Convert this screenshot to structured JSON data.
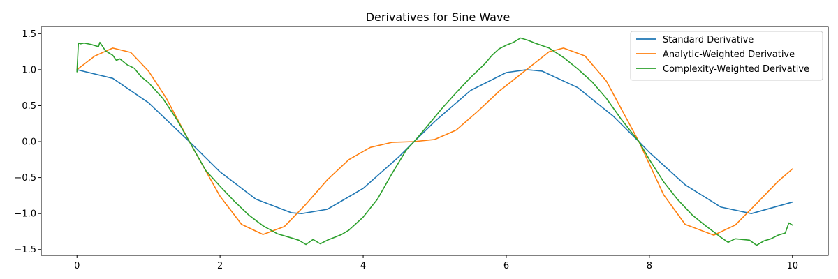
{
  "chart_data": {
    "type": "line",
    "title": "Derivatives for Sine Wave",
    "xlabel": "",
    "ylabel": "",
    "xlim": [
      -0.5,
      10.5
    ],
    "ylim": [
      -1.58,
      1.6
    ],
    "x_ticks": [
      0,
      2,
      4,
      6,
      8,
      10
    ],
    "x_tick_labels": [
      "0",
      "2",
      "4",
      "6",
      "8",
      "10"
    ],
    "y_ticks": [
      -1.5,
      -1.0,
      -0.5,
      0.0,
      0.5,
      1.0,
      1.5
    ],
    "y_tick_labels": [
      "−1.5",
      "−1.0",
      "−0.5",
      "0.0",
      "0.5",
      "1.0",
      "1.5"
    ],
    "grid": false,
    "legend_position": "top-right",
    "series": [
      {
        "name": "Standard Derivative",
        "color": "#1f77b4",
        "x": [
          0,
          0.5,
          1.0,
          1.571,
          2.0,
          2.5,
          3.0,
          3.142,
          3.5,
          4.0,
          4.5,
          4.712,
          5.0,
          5.5,
          6.0,
          6.283,
          6.5,
          7.0,
          7.5,
          7.854,
          8.0,
          8.5,
          9.0,
          9.425,
          10.0
        ],
        "values": [
          1.0,
          0.88,
          0.54,
          0.0,
          -0.42,
          -0.8,
          -0.99,
          -1.0,
          -0.94,
          -0.65,
          -0.21,
          0.0,
          0.28,
          0.71,
          0.96,
          1.0,
          0.98,
          0.75,
          0.35,
          0.0,
          -0.15,
          -0.6,
          -0.91,
          -1.0,
          -0.84
        ]
      },
      {
        "name": "Analytic-Weighted Derivative",
        "color": "#ff7f0e",
        "x": [
          0,
          0.25,
          0.5,
          0.75,
          1.0,
          1.25,
          1.571,
          2.0,
          2.3,
          2.6,
          2.9,
          3.2,
          3.5,
          3.8,
          4.1,
          4.4,
          4.712,
          5.0,
          5.3,
          5.6,
          5.9,
          6.283,
          6.6,
          6.8,
          7.1,
          7.4,
          7.854,
          8.2,
          8.5,
          8.9,
          9.2,
          9.5,
          9.8,
          10.0
        ],
        "values": [
          1.0,
          1.19,
          1.3,
          1.24,
          0.98,
          0.6,
          0.0,
          -0.76,
          -1.15,
          -1.29,
          -1.18,
          -0.87,
          -0.53,
          -0.25,
          -0.08,
          -0.01,
          0.0,
          0.03,
          0.16,
          0.42,
          0.7,
          1.0,
          1.25,
          1.3,
          1.19,
          0.84,
          0.0,
          -0.74,
          -1.15,
          -1.3,
          -1.16,
          -0.86,
          -0.55,
          -0.38
        ]
      },
      {
        "name": "Complexity-Weighted Derivative",
        "color": "#2ca02c",
        "x": [
          0,
          0.02,
          0.05,
          0.1,
          0.2,
          0.3,
          0.32,
          0.4,
          0.5,
          0.55,
          0.6,
          0.7,
          0.8,
          0.9,
          1.0,
          1.2,
          1.4,
          1.571,
          1.8,
          2.0,
          2.2,
          2.4,
          2.6,
          2.8,
          3.0,
          3.1,
          3.2,
          3.3,
          3.4,
          3.5,
          3.6,
          3.7,
          3.8,
          4.0,
          4.2,
          4.4,
          4.6,
          4.712,
          4.9,
          5.1,
          5.3,
          5.5,
          5.7,
          5.8,
          5.9,
          6.0,
          6.1,
          6.2,
          6.3,
          6.4,
          6.6,
          6.8,
          7.0,
          7.2,
          7.4,
          7.6,
          7.854,
          8.0,
          8.2,
          8.4,
          8.6,
          8.8,
          9.0,
          9.1,
          9.2,
          9.3,
          9.4,
          9.5,
          9.6,
          9.7,
          9.8,
          9.9,
          9.95,
          10.0
        ],
        "values": [
          0.97,
          1.37,
          1.36,
          1.37,
          1.35,
          1.32,
          1.38,
          1.26,
          1.2,
          1.13,
          1.15,
          1.07,
          1.02,
          0.9,
          0.82,
          0.6,
          0.3,
          0.0,
          -0.4,
          -0.62,
          -0.83,
          -1.02,
          -1.17,
          -1.28,
          -1.34,
          -1.37,
          -1.43,
          -1.36,
          -1.42,
          -1.37,
          -1.33,
          -1.29,
          -1.23,
          -1.05,
          -0.8,
          -0.45,
          -0.12,
          0.0,
          0.22,
          0.46,
          0.68,
          0.89,
          1.08,
          1.2,
          1.29,
          1.34,
          1.38,
          1.44,
          1.41,
          1.37,
          1.3,
          1.17,
          1.01,
          0.83,
          0.6,
          0.32,
          0.0,
          -0.25,
          -0.56,
          -0.81,
          -1.02,
          -1.18,
          -1.33,
          -1.4,
          -1.35,
          -1.36,
          -1.37,
          -1.44,
          -1.38,
          -1.35,
          -1.3,
          -1.27,
          -1.13,
          -1.16
        ]
      }
    ]
  }
}
